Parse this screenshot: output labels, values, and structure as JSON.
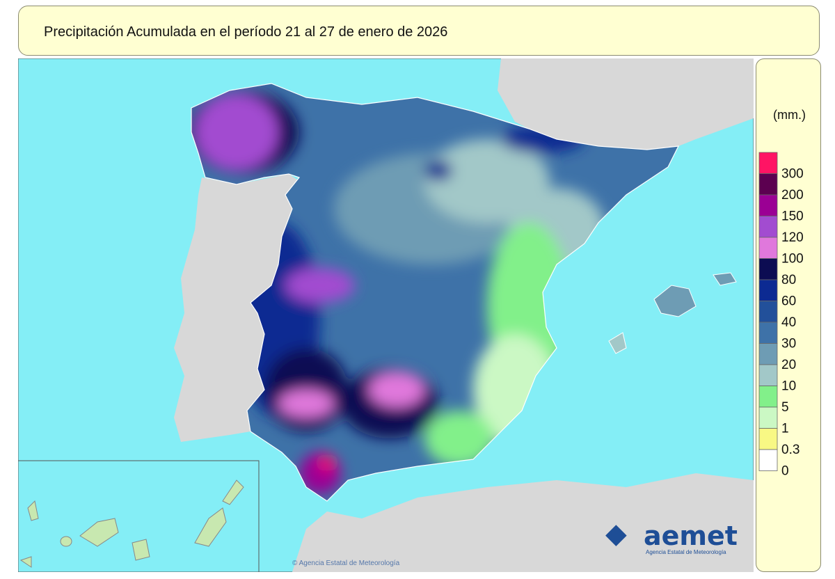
{
  "title": "Precipitación Acumulada en el período 21 al 27 de enero de 2026",
  "legend": {
    "unit": "(mm.)",
    "levels": [
      {
        "label": 300,
        "color": "#ff1464"
      },
      {
        "label": 200,
        "color": "#5c0050"
      },
      {
        "label": 150,
        "color": "#9b0094"
      },
      {
        "label": 120,
        "color": "#a24cd0"
      },
      {
        "label": 100,
        "color": "#e078dc"
      },
      {
        "label": 80,
        "color": "#0c0c52"
      },
      {
        "label": 60,
        "color": "#0c2a92"
      },
      {
        "label": 40,
        "color": "#22509a"
      },
      {
        "label": 30,
        "color": "#3e72a8"
      },
      {
        "label": 20,
        "color": "#6e9cb4"
      },
      {
        "label": 10,
        "color": "#a2c8c8"
      },
      {
        "label": 5,
        "color": "#82f08a"
      },
      {
        "label": 1,
        "color": "#cbf8c4"
      },
      {
        "label": 0.3,
        "color": "#f8f884"
      },
      {
        "label": 0,
        "color": "#ffffff"
      }
    ]
  },
  "logo": {
    "name": "aemet",
    "subtitle": "Agencia Estatal de Meteorología"
  },
  "credit": "© Agencia Estatal de Meteorología"
}
